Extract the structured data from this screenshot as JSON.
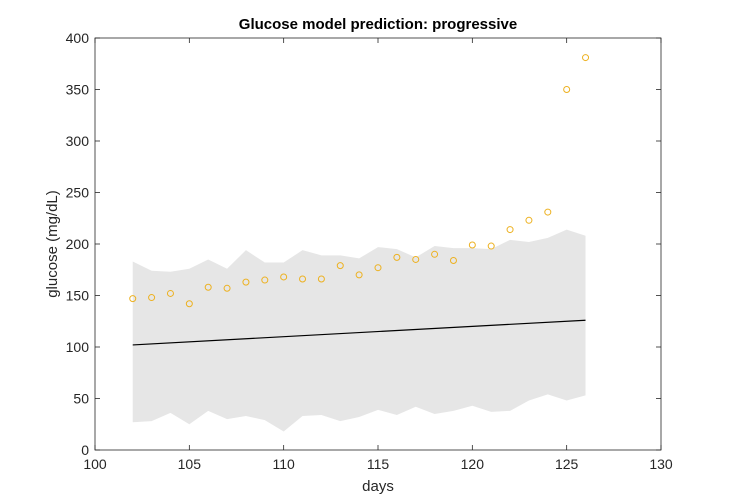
{
  "chart_data": {
    "type": "scatter",
    "title": "Glucose model prediction: progressive",
    "xlabel": "days",
    "ylabel": "glucose (mg/dL)",
    "xlim": [
      100,
      130
    ],
    "ylim": [
      0,
      400
    ],
    "xticks": [
      "100",
      "105",
      "110",
      "115",
      "120",
      "125",
      "130"
    ],
    "yticks": [
      "0",
      "50",
      "100",
      "150",
      "200",
      "250",
      "300",
      "350",
      "400"
    ],
    "grid": false,
    "legend": "none",
    "colors": {
      "band": "#e6e6e6",
      "line": "#000000",
      "points": "#edb120",
      "axis": "#262626"
    },
    "band": {
      "x": [
        102,
        103,
        104,
        105,
        106,
        107,
        108,
        109,
        110,
        111,
        112,
        113,
        114,
        115,
        116,
        117,
        118,
        119,
        120,
        121,
        122,
        123,
        124,
        125,
        126
      ],
      "upper": [
        183,
        174,
        173,
        176,
        185,
        176,
        194,
        182,
        182,
        194,
        189,
        189,
        186,
        197,
        195,
        187,
        198,
        196,
        196,
        195,
        204,
        202,
        206,
        214,
        208
      ],
      "lower": [
        27,
        28,
        36,
        25,
        38,
        30,
        33,
        29,
        18,
        33,
        34,
        28,
        32,
        39,
        34,
        42,
        35,
        38,
        43,
        37,
        38,
        48,
        54,
        48,
        53
      ]
    },
    "series": [
      {
        "type": "line",
        "x": [
          102,
          126
        ],
        "y": [
          102,
          126
        ]
      },
      {
        "type": "scatter",
        "x": [
          102,
          103,
          104,
          105,
          106,
          107,
          108,
          109,
          110,
          111,
          112,
          113,
          114,
          115,
          116,
          117,
          118,
          119,
          120,
          121,
          122,
          123,
          124,
          125,
          126
        ],
        "y": [
          147,
          148,
          152,
          142,
          158,
          157,
          163,
          165,
          168,
          166,
          166,
          179,
          170,
          177,
          187,
          185,
          190,
          184,
          199,
          198,
          214,
          223,
          231,
          350,
          381
        ]
      }
    ]
  }
}
